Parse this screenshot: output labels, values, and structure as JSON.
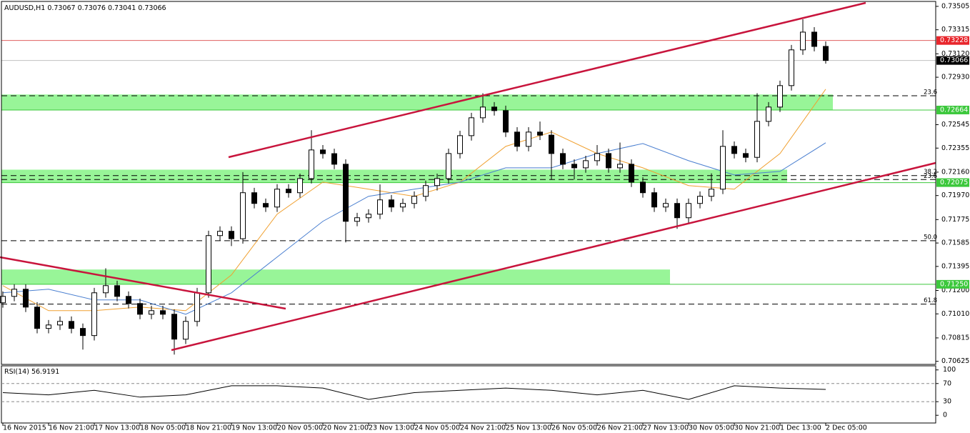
{
  "chart_data": {
    "type": "candlestick",
    "title": "AUDUSD,H1",
    "last_bar": [
      0.73067,
      0.73076,
      0.73041,
      0.73066
    ],
    "categories": [
      "16 Nov 2015",
      null,
      null,
      null,
      "16 Nov 21:00",
      null,
      null,
      null,
      "17 Nov 13:00",
      null,
      null,
      null,
      "18 Nov 05:00",
      null,
      null,
      null,
      "18 Nov 21:00",
      null,
      null,
      null,
      "19 Nov 13:00",
      null,
      null,
      null,
      "20 Nov 05:00",
      null,
      null,
      null,
      "20 Nov 21:00",
      null,
      null,
      null,
      "23 Nov 13:00",
      null,
      null,
      null,
      "24 Nov 05:00",
      null,
      null,
      null,
      "24 Nov 21:00",
      null,
      null,
      null,
      "25 Nov 13:00",
      null,
      null,
      null,
      "26 Nov 05:00",
      null,
      null,
      null,
      "26 Nov 21:00",
      null,
      null,
      null,
      "27 Nov 13:00",
      null,
      null,
      null,
      "30 Nov 05:00",
      null,
      null,
      null,
      "30 Nov 21:00",
      null,
      null,
      null,
      "1 Dec 13:00",
      null,
      null,
      null,
      "2 Dec 05:00"
    ],
    "ohlc": [
      [
        0.711,
        0.71192,
        0.7106,
        0.71152
      ],
      [
        0.71152,
        0.7125,
        0.71112,
        0.7121
      ],
      [
        0.7121,
        0.7125,
        0.71025,
        0.71065
      ],
      [
        0.71065,
        0.71105,
        0.70852,
        0.70892
      ],
      [
        0.70892,
        0.7096,
        0.70852,
        0.7092
      ],
      [
        0.7092,
        0.70989,
        0.7088,
        0.70949
      ],
      [
        0.70949,
        0.70989,
        0.70852,
        0.70892
      ],
      [
        0.70892,
        0.70932,
        0.7072,
        0.70834
      ],
      [
        0.70834,
        0.71221,
        0.70794,
        0.71181
      ],
      [
        0.71181,
        0.7138,
        0.71141,
        0.71239
      ],
      [
        0.71239,
        0.71279,
        0.71112,
        0.71152
      ],
      [
        0.71152,
        0.71192,
        0.71054,
        0.71094
      ],
      [
        0.71094,
        0.71134,
        0.70967,
        0.71007
      ],
      [
        0.71007,
        0.71076,
        0.70967,
        0.71036
      ],
      [
        0.71036,
        0.71076,
        0.70967,
        0.71007
      ],
      [
        0.71007,
        0.71047,
        0.7068,
        0.70805
      ],
      [
        0.70805,
        0.70989,
        0.70765,
        0.70949
      ],
      [
        0.70949,
        0.71221,
        0.70909,
        0.71181
      ],
      [
        0.71181,
        0.71685,
        0.71141,
        0.71645
      ],
      [
        0.71645,
        0.7172,
        0.71605,
        0.7168
      ],
      [
        0.7168,
        0.7172,
        0.7156,
        0.7162
      ],
      [
        0.7162,
        0.7216,
        0.7158,
        0.71993
      ],
      [
        0.71993,
        0.72033,
        0.71866,
        0.71906
      ],
      [
        0.71906,
        0.71946,
        0.71837,
        0.71877
      ],
      [
        0.71877,
        0.72062,
        0.71837,
        0.72022
      ],
      [
        0.72022,
        0.72062,
        0.71953,
        0.71993
      ],
      [
        0.71993,
        0.72148,
        0.71953,
        0.72108
      ],
      [
        0.72108,
        0.725,
        0.72068,
        0.7234
      ],
      [
        0.7234,
        0.7238,
        0.7227,
        0.7231
      ],
      [
        0.7231,
        0.7235,
        0.72184,
        0.72224
      ],
      [
        0.72224,
        0.72264,
        0.7159,
        0.71761
      ],
      [
        0.71761,
        0.7183,
        0.71721,
        0.7179
      ],
      [
        0.7179,
        0.71859,
        0.7175,
        0.71819
      ],
      [
        0.71819,
        0.7206,
        0.71779,
        0.71935
      ],
      [
        0.71935,
        0.71975,
        0.71837,
        0.71877
      ],
      [
        0.71877,
        0.71946,
        0.71837,
        0.71906
      ],
      [
        0.71906,
        0.72004,
        0.71866,
        0.71964
      ],
      [
        0.71964,
        0.72091,
        0.71924,
        0.72051
      ],
      [
        0.72051,
        0.72148,
        0.72011,
        0.72108
      ],
      [
        0.72108,
        0.72351,
        0.72068,
        0.72311
      ],
      [
        0.72311,
        0.72496,
        0.72271,
        0.72456
      ],
      [
        0.72456,
        0.72641,
        0.72416,
        0.72601
      ],
      [
        0.72601,
        0.728,
        0.72561,
        0.72688
      ],
      [
        0.72688,
        0.72728,
        0.72619,
        0.72659
      ],
      [
        0.72659,
        0.72699,
        0.72445,
        0.72485
      ],
      [
        0.72485,
        0.72525,
        0.72329,
        0.72369
      ],
      [
        0.72369,
        0.72525,
        0.72329,
        0.72485
      ],
      [
        0.72485,
        0.7257,
        0.7242,
        0.7246
      ],
      [
        0.7246,
        0.725,
        0.721,
        0.72311
      ],
      [
        0.72311,
        0.72351,
        0.72184,
        0.72224
      ],
      [
        0.72224,
        0.72264,
        0.721,
        0.72195
      ],
      [
        0.72195,
        0.72293,
        0.72155,
        0.72253
      ],
      [
        0.72253,
        0.7238,
        0.72213,
        0.72311
      ],
      [
        0.72311,
        0.72351,
        0.72155,
        0.72195
      ],
      [
        0.72195,
        0.724,
        0.72155,
        0.72224
      ],
      [
        0.72224,
        0.72264,
        0.72039,
        0.72079
      ],
      [
        0.72079,
        0.72119,
        0.71953,
        0.71993
      ],
      [
        0.71993,
        0.72033,
        0.71837,
        0.71877
      ],
      [
        0.71877,
        0.71946,
        0.71837,
        0.71906
      ],
      [
        0.71906,
        0.71946,
        0.717,
        0.7179
      ],
      [
        0.7179,
        0.71946,
        0.7175,
        0.71906
      ],
      [
        0.71906,
        0.72004,
        0.71866,
        0.71964
      ],
      [
        0.71964,
        0.7215,
        0.71924,
        0.72022
      ],
      [
        0.72022,
        0.725,
        0.71982,
        0.72369
      ],
      [
        0.72369,
        0.72409,
        0.72271,
        0.72311
      ],
      [
        0.72311,
        0.72351,
        0.7224,
        0.7228
      ],
      [
        0.7228,
        0.728,
        0.7224,
        0.72572
      ],
      [
        0.72572,
        0.72728,
        0.72532,
        0.72688
      ],
      [
        0.72688,
        0.72902,
        0.72648,
        0.72862
      ],
      [
        0.72862,
        0.73192,
        0.72822,
        0.73152
      ],
      [
        0.73152,
        0.734,
        0.73112,
        0.73296
      ],
      [
        0.73296,
        0.73336,
        0.7314,
        0.7318
      ],
      [
        0.7318,
        0.7322,
        0.73041,
        0.73066
      ]
    ],
    "up_color": "#ffffff",
    "down_color": "#000000",
    "moving_averages": [
      {
        "color": "#f0a030",
        "values": [
          0.71239,
          0.71036,
          0.71036,
          0.71065,
          0.71036,
          0.71326,
          0.71819,
          0.72079,
          0.72022,
          0.71964,
          0.72079,
          0.72369,
          0.72485,
          0.72311,
          0.72195,
          0.72051,
          0.72022,
          0.72311,
          0.72833
        ]
      },
      {
        "color": "#4a7fd0",
        "values": [
          0.71181,
          0.7121,
          0.71123,
          0.71123,
          0.71007,
          0.71181,
          0.71471,
          0.71761,
          0.71964,
          0.72022,
          0.72079,
          0.72195,
          0.72195,
          0.72311,
          0.72392,
          0.72253,
          0.72137,
          0.72166,
          0.72398
        ]
      }
    ],
    "ylim": [
      0.706,
      0.73545
    ],
    "yticks": [
      0.73505,
      0.73315,
      {
        "value": 0.7312,
        "label": "0.73120"
      },
      {
        "value": 0.7293,
        "label": "0.72930"
      },
      0.72545,
      0.72355,
      {
        "value": 0.7216,
        "label": "0.72160"
      },
      {
        "value": 0.7197,
        "label": "0.71970"
      },
      0.71775,
      0.71585,
      0.71395,
      {
        "value": 0.712,
        "label": "0.71200"
      },
      {
        "value": 0.7101,
        "label": "0.71010"
      },
      0.70815,
      0.70625
    ],
    "zones": [
      {
        "low": 0.72664,
        "high": 0.7279
      },
      {
        "low": 0.72075,
        "high": 0.7218
      },
      {
        "low": 0.7125,
        "high": 0.7137
      }
    ],
    "zone_color": "#98f598",
    "fib_levels": [
      {
        "value": 0.7278,
        "label": "23.6"
      },
      {
        "value": 0.72132,
        "label": "38.2"
      },
      {
        "value": 0.721,
        "label": "23.6"
      },
      {
        "value": 0.71604,
        "label": "50.0"
      },
      {
        "value": 0.71089,
        "label": "61.8"
      }
    ],
    "price_levels": [
      {
        "value": 0.73228,
        "label": "0.73228",
        "color": "#e8262c",
        "line": "#e06060"
      },
      {
        "value": 0.73066,
        "label": "0.73066",
        "color": "#000000",
        "line": "#c0c0c0"
      },
      {
        "value": 0.72664,
        "label": "0.72664",
        "color": "#3cc83c",
        "line": "#3cc83c"
      },
      {
        "value": 0.72075,
        "label": "0.72075",
        "color": "#3cc83c",
        "line": "#3cc83c"
      },
      {
        "value": 0.7125,
        "label": "0.71250",
        "color": "#3cc83c",
        "line": "#3cc83c"
      }
    ],
    "rsi": {
      "label": "RSI(14)",
      "value": 56.9191,
      "values": [
        50,
        45,
        55,
        40,
        45,
        65,
        65,
        60,
        35,
        50,
        55,
        60,
        55,
        45,
        55,
        35,
        65,
        60,
        57
      ],
      "ylim": [
        -17,
        109
      ],
      "yticks": [
        100,
        70,
        30,
        0
      ],
      "levels": [
        70,
        30
      ],
      "color": "#000000"
    }
  }
}
